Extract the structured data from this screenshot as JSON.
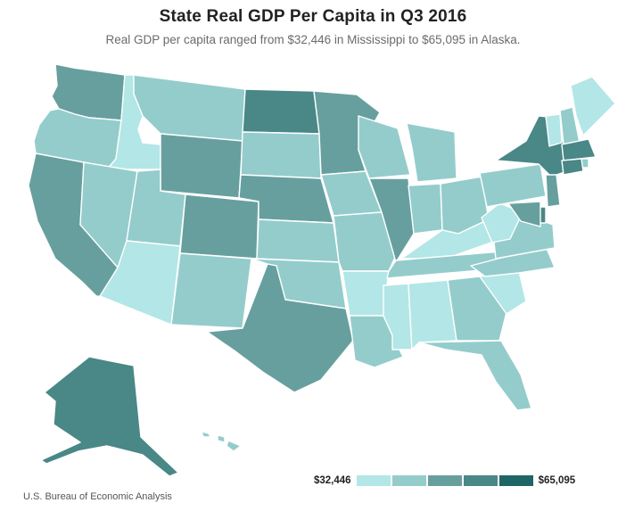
{
  "header": {
    "title": "State Real GDP Per Capita in Q3 2016",
    "subtitle": "Real GDP per capita ranged from $32,446 in Mississippi to $65,095 in Alaska."
  },
  "legend": {
    "min_label": "$32,446",
    "max_label": "$65,095",
    "colors": [
      "#b3e6e6",
      "#94cccc",
      "#679f9f",
      "#4a8787",
      "#1f6565"
    ]
  },
  "colors": {
    "background": "#ffffff",
    "state_border": "#ffffff"
  },
  "source": "U.S. Bureau of Economic Analysis",
  "map_data": {
    "type": "choropleth",
    "bins": 5,
    "states": [
      {
        "name": "Washington",
        "bin": 2
      },
      {
        "name": "Oregon",
        "bin": 1
      },
      {
        "name": "California",
        "bin": 2
      },
      {
        "name": "Idaho",
        "bin": 0
      },
      {
        "name": "Nevada",
        "bin": 1
      },
      {
        "name": "Montana",
        "bin": 1
      },
      {
        "name": "Wyoming",
        "bin": 2
      },
      {
        "name": "Utah",
        "bin": 1
      },
      {
        "name": "Arizona",
        "bin": 0
      },
      {
        "name": "Colorado",
        "bin": 2
      },
      {
        "name": "New Mexico",
        "bin": 1
      },
      {
        "name": "North Dakota",
        "bin": 3
      },
      {
        "name": "South Dakota",
        "bin": 1
      },
      {
        "name": "Nebraska",
        "bin": 2
      },
      {
        "name": "Kansas",
        "bin": 1
      },
      {
        "name": "Oklahoma",
        "bin": 1
      },
      {
        "name": "Texas",
        "bin": 2
      },
      {
        "name": "Minnesota",
        "bin": 2
      },
      {
        "name": "Iowa",
        "bin": 1
      },
      {
        "name": "Missouri",
        "bin": 1
      },
      {
        "name": "Arkansas",
        "bin": 0
      },
      {
        "name": "Louisiana",
        "bin": 1
      },
      {
        "name": "Wisconsin",
        "bin": 1
      },
      {
        "name": "Illinois",
        "bin": 2
      },
      {
        "name": "Michigan",
        "bin": 1
      },
      {
        "name": "Indiana",
        "bin": 1
      },
      {
        "name": "Ohio",
        "bin": 1
      },
      {
        "name": "Kentucky",
        "bin": 0
      },
      {
        "name": "Tennessee",
        "bin": 1
      },
      {
        "name": "Mississippi",
        "bin": 0
      },
      {
        "name": "Alabama",
        "bin": 0
      },
      {
        "name": "Georgia",
        "bin": 1
      },
      {
        "name": "Florida",
        "bin": 1
      },
      {
        "name": "South Carolina",
        "bin": 0
      },
      {
        "name": "North Carolina",
        "bin": 1
      },
      {
        "name": "Virginia",
        "bin": 1
      },
      {
        "name": "West Virginia",
        "bin": 0
      },
      {
        "name": "Pennsylvania",
        "bin": 1
      },
      {
        "name": "New York",
        "bin": 3
      },
      {
        "name": "Vermont",
        "bin": 0
      },
      {
        "name": "New Hampshire",
        "bin": 1
      },
      {
        "name": "Maine",
        "bin": 0
      },
      {
        "name": "Massachusetts",
        "bin": 3
      },
      {
        "name": "Rhode Island",
        "bin": 1
      },
      {
        "name": "Connecticut",
        "bin": 3
      },
      {
        "name": "New Jersey",
        "bin": 2
      },
      {
        "name": "Delaware",
        "bin": 3
      },
      {
        "name": "Maryland",
        "bin": 2
      },
      {
        "name": "Alaska",
        "bin": 3
      },
      {
        "name": "Hawaii",
        "bin": 1
      }
    ]
  }
}
